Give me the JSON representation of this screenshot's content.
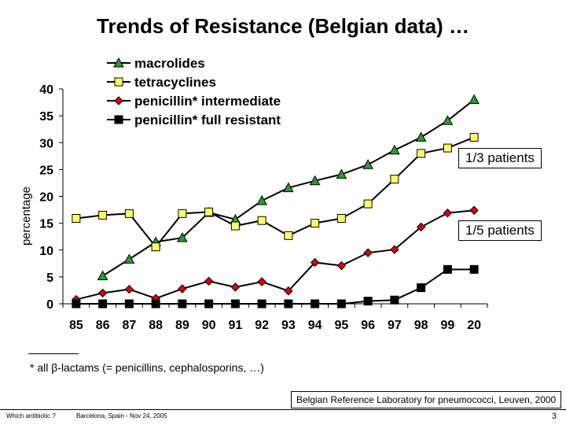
{
  "slide": {
    "title": "Trends of Resistance (Belgian data) …",
    "footnote": "* all β-lactams (= penicillins, cephalosporins, …)",
    "source": "Belgian Reference Laboratory for pneumococci, Leuven, 2000",
    "footer_left": "Which antibiotic ?",
    "footer_center": "Barcelona, Spain - Nov 24, 2005",
    "page_number": "3"
  },
  "callouts": {
    "upper": "1/3 patients",
    "lower": "1/5 patients"
  },
  "chart_data": {
    "type": "line",
    "ylabel": "percentage",
    "xlabel": "",
    "ylim": [
      0,
      40
    ],
    "yticks": [
      0,
      5,
      10,
      15,
      20,
      25,
      30,
      35,
      40
    ],
    "categories": [
      "85",
      "86",
      "87",
      "88",
      "89",
      "90",
      "91",
      "92",
      "93",
      "94",
      "95",
      "96",
      "97",
      "98",
      "99",
      "20"
    ],
    "legend_position": "top",
    "series": [
      {
        "name": "macrolides",
        "marker": "triangle",
        "color": "#2a9d2a",
        "values": [
          null,
          5.2,
          8.3,
          11.5,
          12.3,
          17.0,
          15.7,
          19.2,
          21.6,
          22.9,
          24.1,
          25.9,
          28.6,
          31.0,
          34.1,
          38.0
        ]
      },
      {
        "name": "tetracyclines",
        "marker": "square",
        "color": "#ffff66",
        "values": [
          15.9,
          16.5,
          16.8,
          10.6,
          16.8,
          17.1,
          14.5,
          15.5,
          12.7,
          15.0,
          15.9,
          18.6,
          23.2,
          28.0,
          29.0,
          31.0
        ]
      },
      {
        "name": "penicillin* intermediate",
        "marker": "diamond",
        "color": "#dd0000",
        "values": [
          0.8,
          2.0,
          2.7,
          1.0,
          2.8,
          4.2,
          3.1,
          4.1,
          2.4,
          7.7,
          7.1,
          9.5,
          10.1,
          14.3,
          16.9,
          17.4
        ]
      },
      {
        "name": "penicillin* full resistant",
        "marker": "square",
        "color": "#000000",
        "values": [
          0.0,
          0.0,
          0.0,
          0.0,
          0.0,
          0.0,
          0.0,
          0.0,
          0.0,
          0.0,
          0.0,
          0.5,
          0.7,
          3.0,
          6.4,
          6.4
        ]
      }
    ]
  }
}
